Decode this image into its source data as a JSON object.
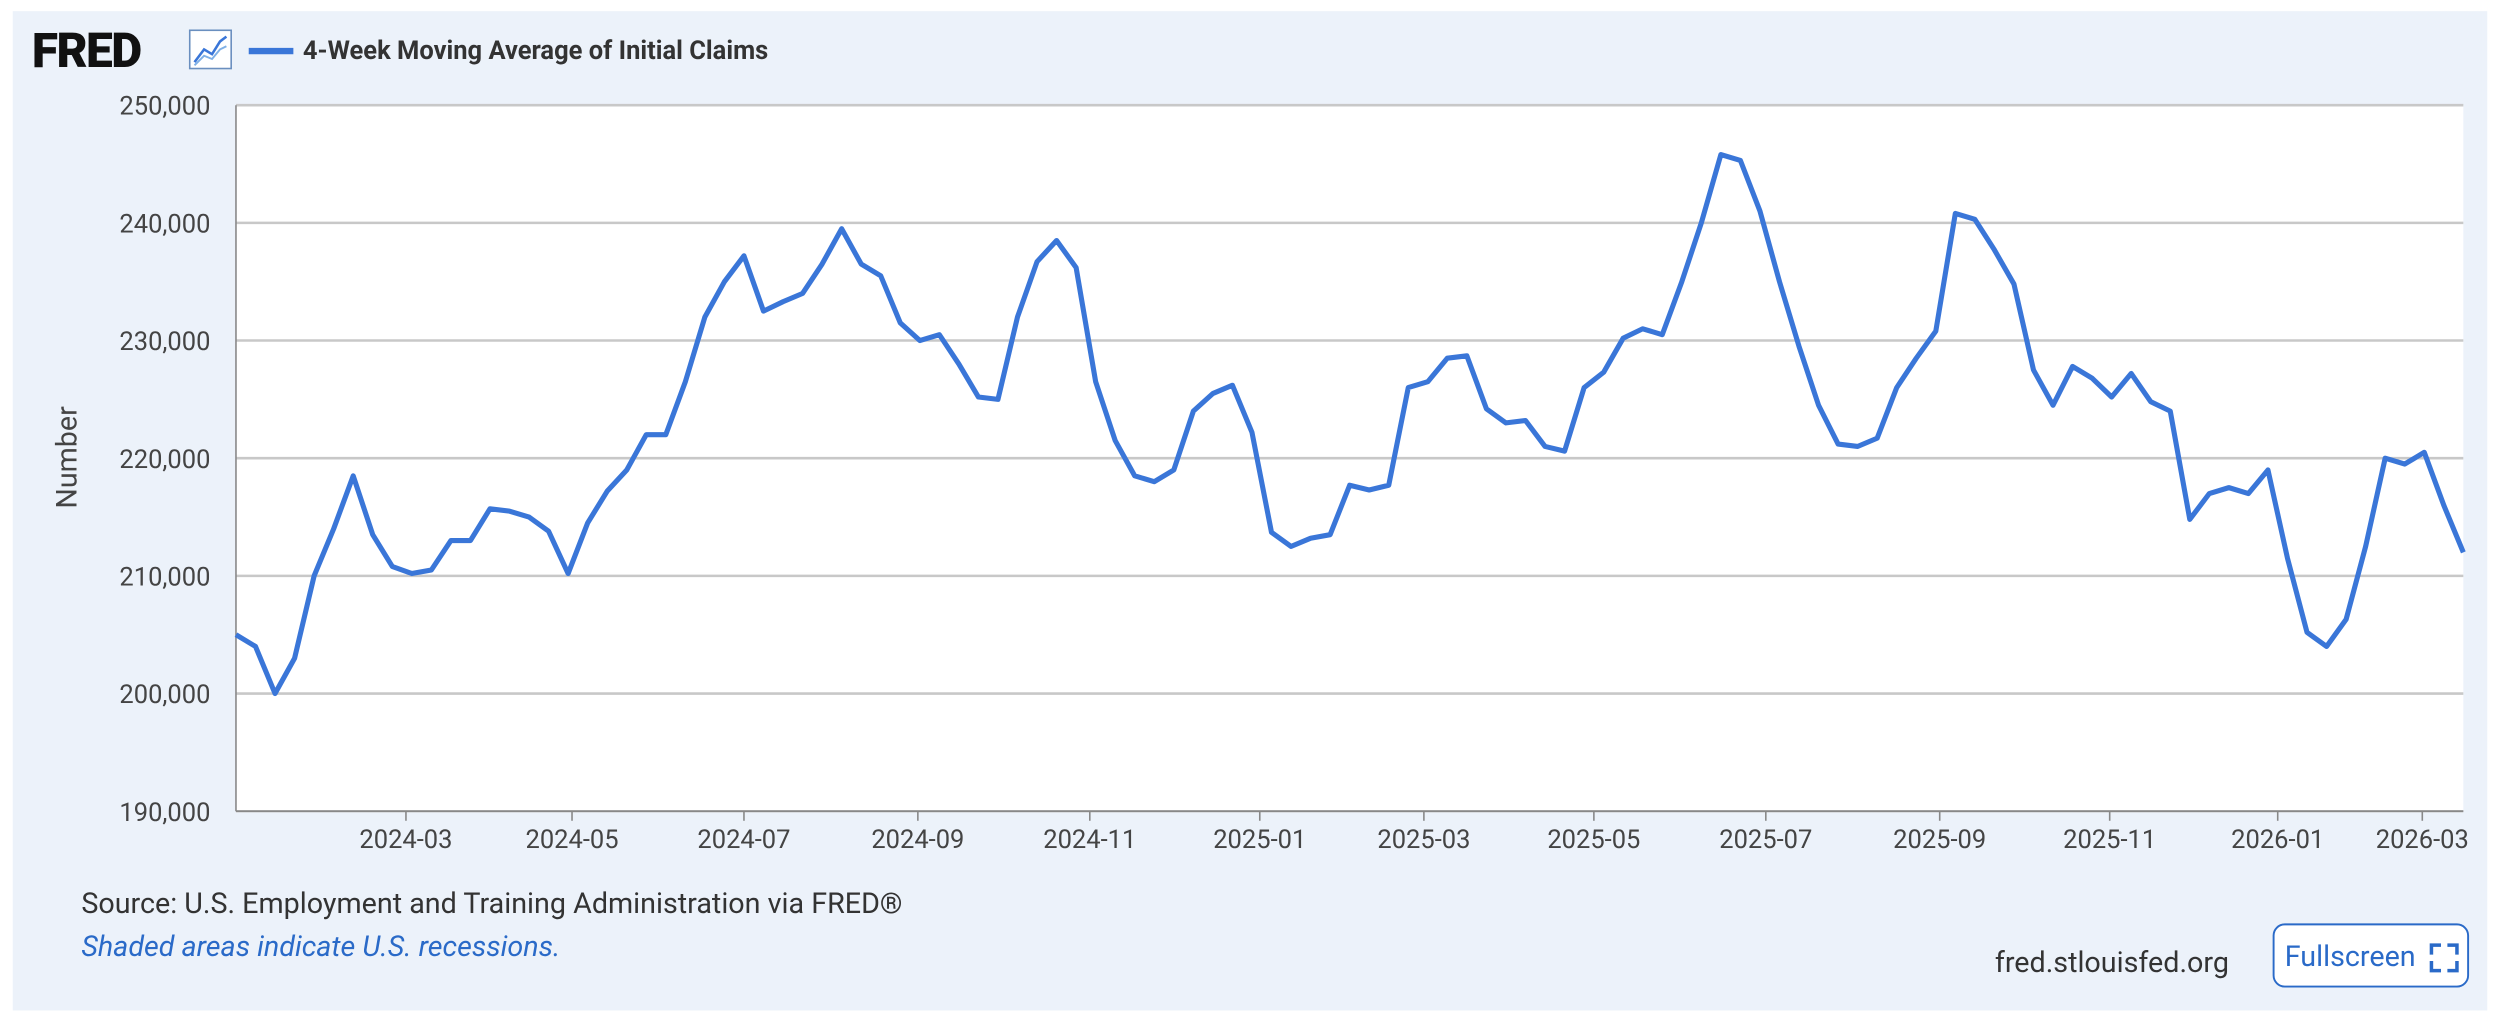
{
  "logo": "FRED",
  "source": "Source: U.S. Employment and Training Administration via FRED®",
  "note": "Shaded areas indicate U.S. recessions.",
  "site": "fred.stlouisfed.org",
  "button": "Fullscreen",
  "chart_data": {
    "type": "line",
    "y_label": "Number",
    "grid": true,
    "series": [
      {
        "name": "4-Week Moving Average of Initial Claims",
        "color": "#3a76d8",
        "values": [
          205000,
          204000,
          200000,
          203000,
          210000,
          214000,
          218500,
          213500,
          210800,
          210200,
          210500,
          213000,
          213000,
          215700,
          215500,
          215000,
          213800,
          210200,
          214500,
          217200,
          219000,
          222000,
          222000,
          226500,
          232000,
          235000,
          237200,
          232500,
          233300,
          234000,
          236500,
          239500,
          236500,
          235500,
          231500,
          230000,
          230500,
          228000,
          225200,
          225000,
          232000,
          236700,
          238500,
          236200,
          226500,
          221500,
          218500,
          218000,
          219000,
          224000,
          225500,
          226200,
          222200,
          213700,
          212500,
          213200,
          213500,
          217700,
          217300,
          217700,
          226000,
          226500,
          228500,
          228700,
          224200,
          223000,
          223200,
          221000,
          220600,
          226000,
          227300,
          230200,
          231000,
          230500,
          235000,
          240000,
          245800,
          245300,
          241000,
          235000,
          229500,
          224500,
          221200,
          221000,
          221700,
          226000,
          228500,
          230800,
          240800,
          240300,
          237700,
          234800,
          227500,
          224500,
          227800,
          226800,
          225200,
          227200,
          224800,
          224000,
          214800,
          217000,
          217500,
          217000,
          219000,
          211500,
          205200,
          204000,
          206300,
          212500,
          220000,
          219500,
          220500,
          216000,
          212000
        ]
      }
    ],
    "xlim": [
      0,
      114
    ],
    "xticks": [
      {
        "value": 8.7,
        "label": "2024-03"
      },
      {
        "value": 17.2,
        "label": "2024-05"
      },
      {
        "value": 26.0,
        "label": "2024-07"
      },
      {
        "value": 34.9,
        "label": "2024-09"
      },
      {
        "value": 43.7,
        "label": "2024-11"
      },
      {
        "value": 52.4,
        "label": "2025-01"
      },
      {
        "value": 60.8,
        "label": "2025-03"
      },
      {
        "value": 69.5,
        "label": "2025-05"
      },
      {
        "value": 78.3,
        "label": "2025-07"
      },
      {
        "value": 87.2,
        "label": "2025-09"
      },
      {
        "value": 95.9,
        "label": "2025-11"
      },
      {
        "value": 104.5,
        "label": "2026-01"
      },
      {
        "value": 111.9,
        "label": "2026-03"
      }
    ],
    "ylim": [
      190000,
      250000
    ],
    "yticks": [
      {
        "value": 190000,
        "label": "190,000"
      },
      {
        "value": 200000,
        "label": "200,000"
      },
      {
        "value": 210000,
        "label": "210,000"
      },
      {
        "value": 220000,
        "label": "220,000"
      },
      {
        "value": 230000,
        "label": "230,000"
      },
      {
        "value": 240000,
        "label": "240,000"
      },
      {
        "value": 250000,
        "label": "250,000"
      }
    ]
  }
}
